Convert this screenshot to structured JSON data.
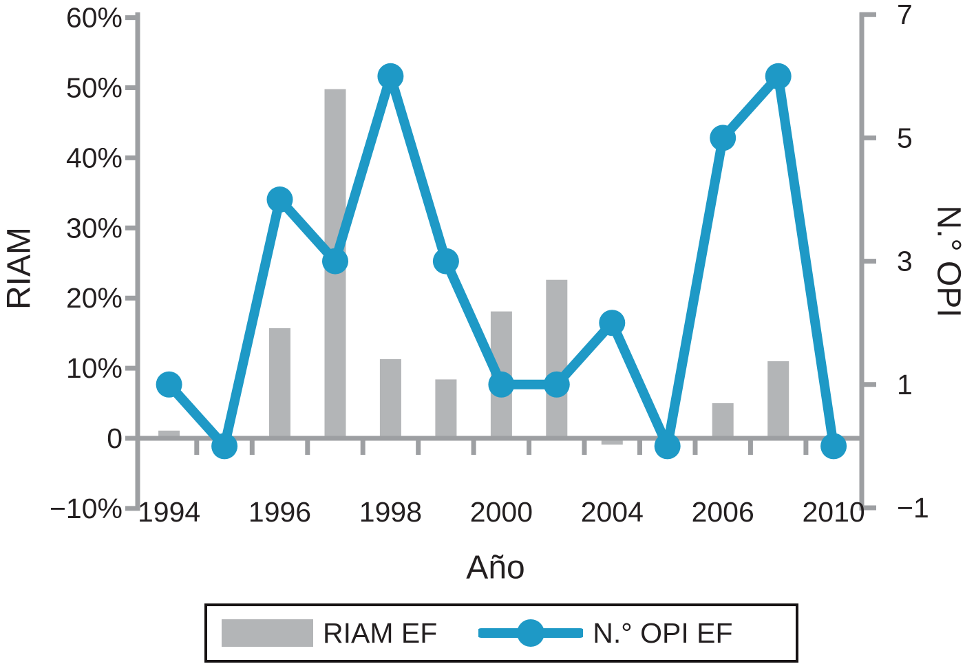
{
  "chart_data": {
    "type": "combo",
    "subtype": "bar+line",
    "x_axis": {
      "label": "Año",
      "tick_labels": [
        "1994",
        "",
        "1996",
        "",
        "1998",
        "",
        "2000",
        "",
        "2004",
        "",
        "2006",
        "",
        "2010"
      ]
    },
    "left_axis": {
      "label": "RIAM",
      "unit": "%",
      "range": [
        -10,
        60
      ],
      "tick_labels": [
        "60%",
        "50%",
        "40%",
        "30%",
        "20%",
        "10%",
        "0",
        "−10%"
      ],
      "tick_values": [
        60,
        50,
        40,
        30,
        20,
        10,
        0,
        -10
      ]
    },
    "right_axis": {
      "label": "N.° OPI",
      "range": [
        -1,
        7
      ],
      "tick_labels": [
        "7",
        "5",
        "3",
        "1",
        "−1"
      ],
      "tick_values": [
        7,
        5,
        3,
        1,
        -1
      ]
    },
    "series": [
      {
        "name": "RIAM EF",
        "type": "bar",
        "axis": "left",
        "color": "#b3b5b7",
        "values": [
          1.1,
          0,
          15.7,
          49.8,
          11.3,
          8.4,
          18.1,
          22.6,
          -0.9,
          0,
          5,
          11,
          0
        ]
      },
      {
        "name": "N.° OPI EF",
        "type": "line",
        "axis": "right",
        "color": "#1e99c6",
        "values": [
          1,
          0,
          4,
          3,
          6,
          3,
          1,
          1,
          2,
          0,
          5,
          6,
          0
        ]
      }
    ],
    "legend": {
      "position": "bottom",
      "entries": [
        "RIAM EF",
        "N.° OPI EF"
      ]
    },
    "grid": false
  },
  "axis_titles": {
    "left": "RIAM",
    "right": "N.° OPI",
    "bottom": "Año"
  },
  "legend": {
    "riam_label": "RIAM EF",
    "opi_label": "N.° OPI EF"
  },
  "colors": {
    "bar": "#b3b5b7",
    "line": "#1e99c6",
    "axis": "#9d9fa2",
    "text": "#231f20",
    "legend_border": "#161213"
  }
}
